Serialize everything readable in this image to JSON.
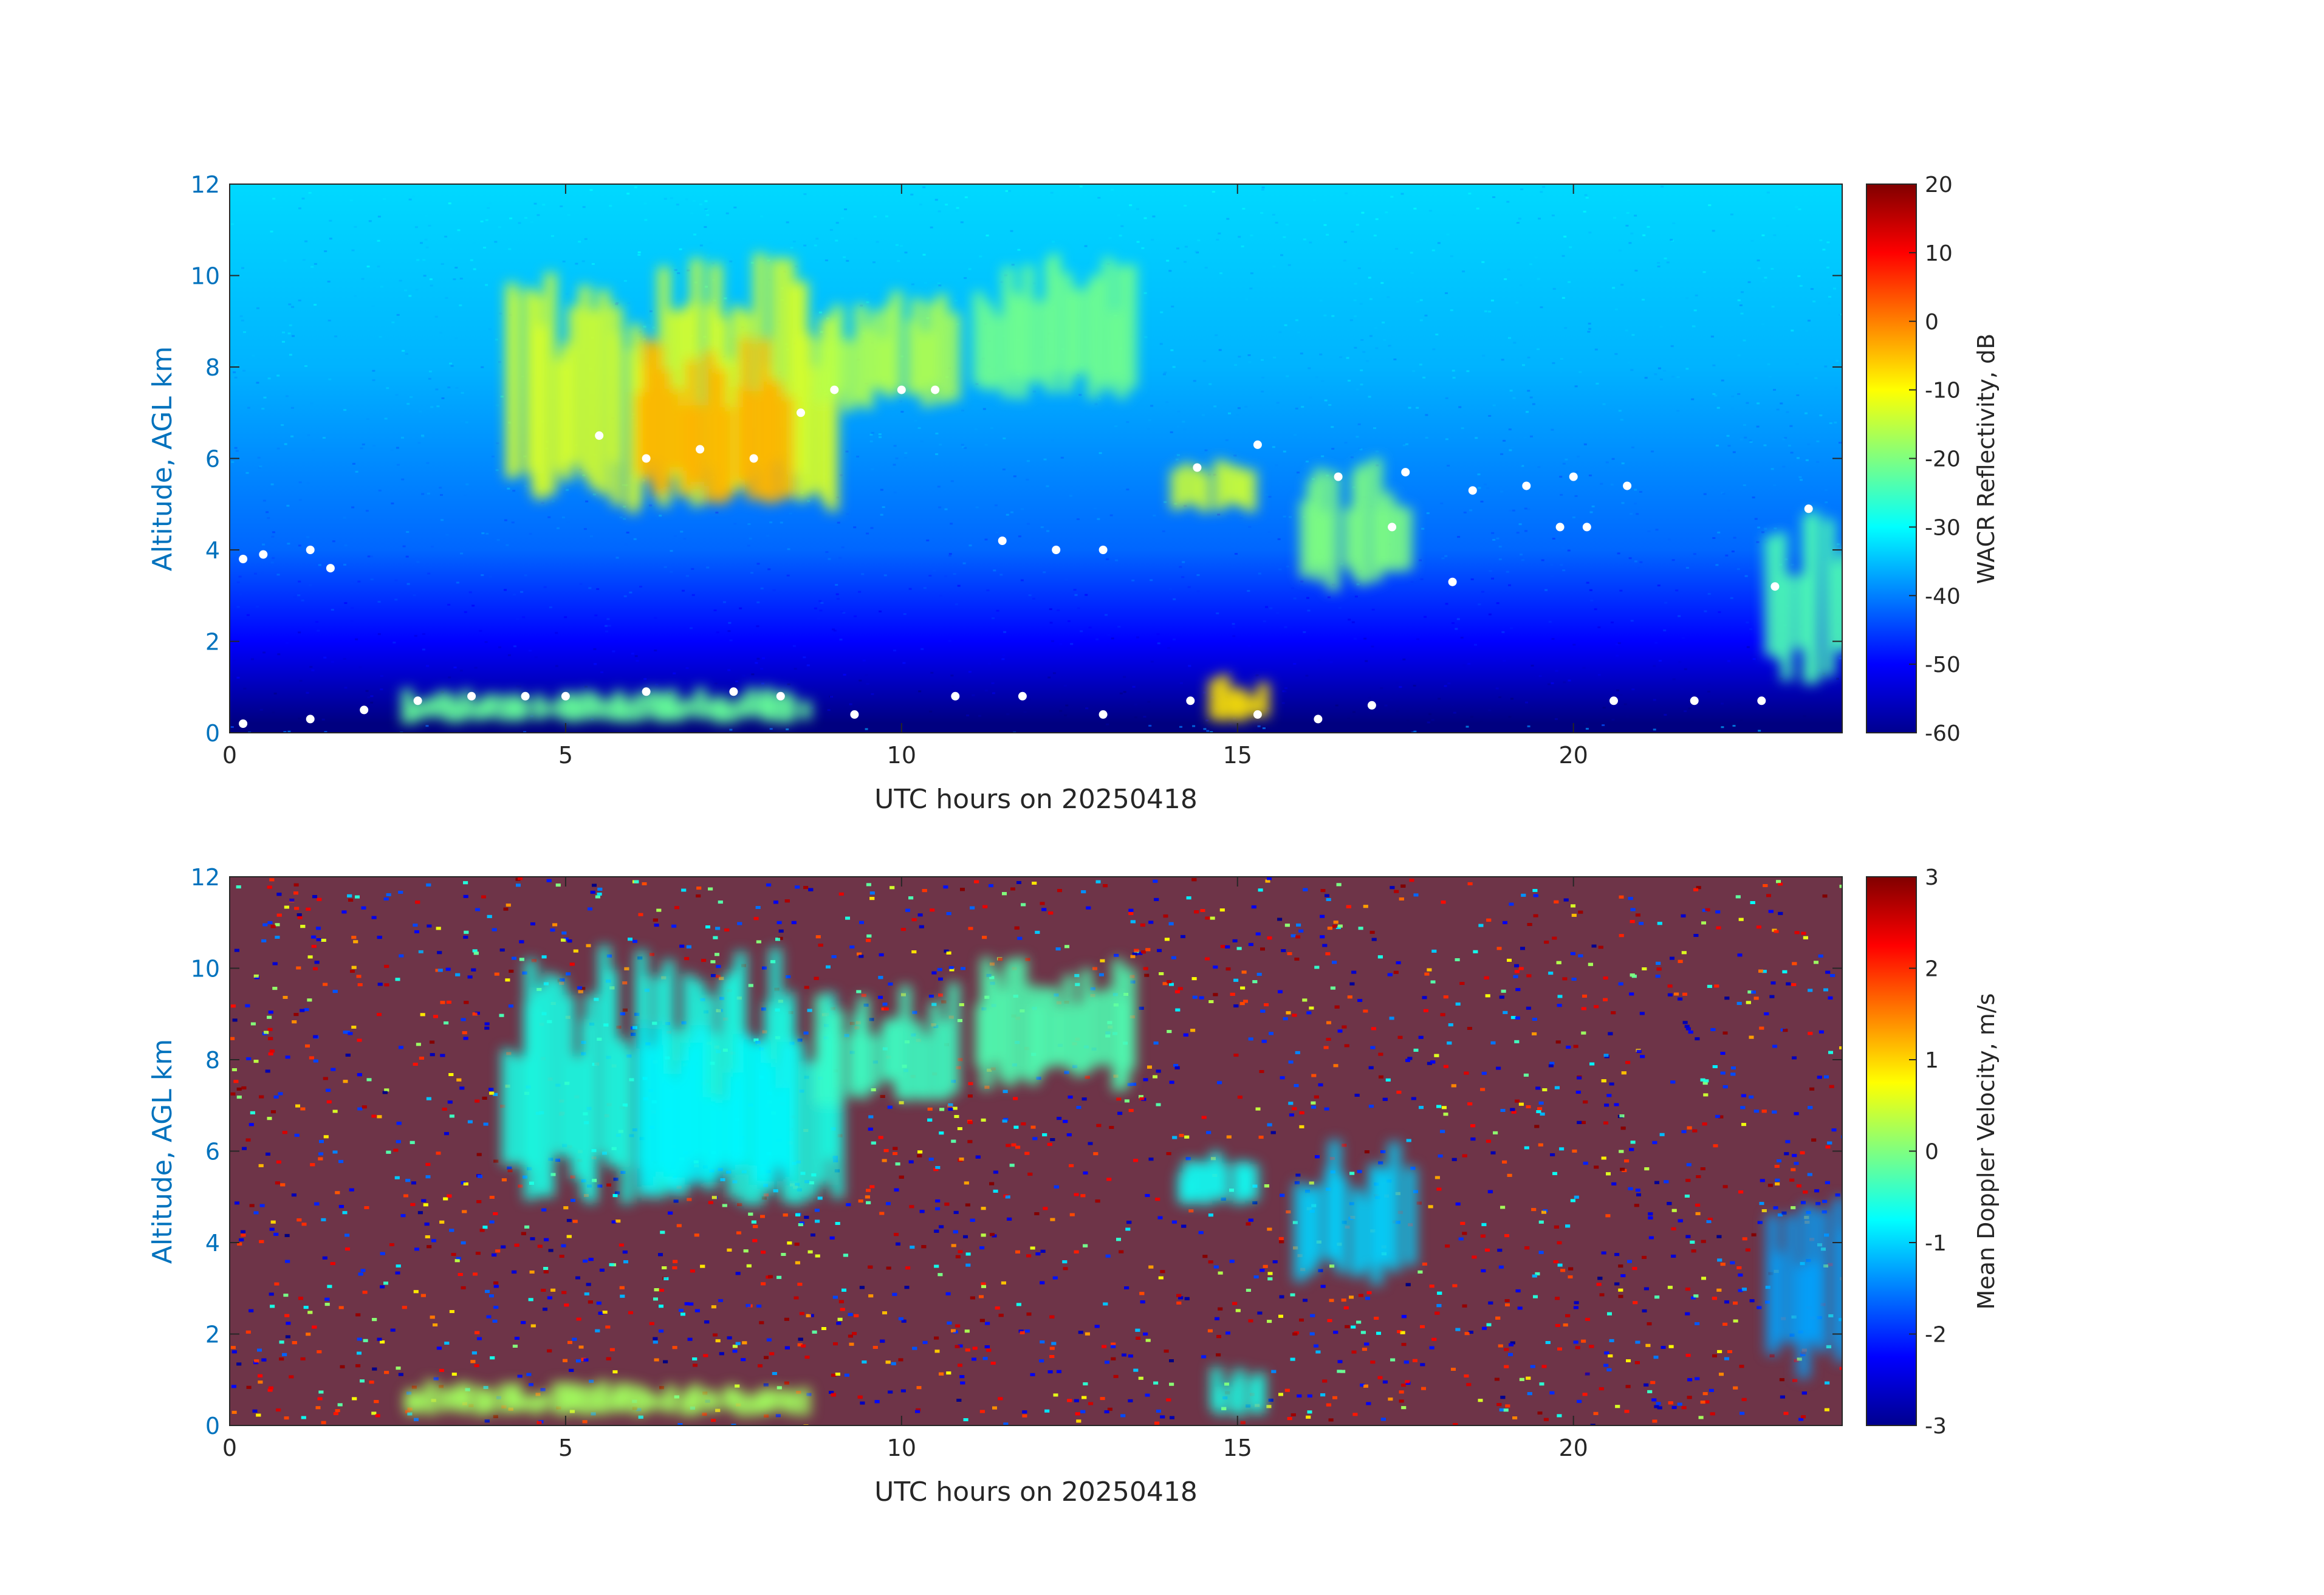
{
  "chart_data": [
    {
      "type": "heatmap",
      "title": "",
      "xlabel": "UTC hours on 20250418",
      "ylabel": "Altitude, AGL km",
      "xlim": [
        0,
        24
      ],
      "ylim": [
        0,
        12
      ],
      "xticks": [
        0,
        5,
        10,
        15,
        20
      ],
      "yticks": [
        0,
        2,
        4,
        6,
        8,
        10,
        12
      ],
      "colorbar": {
        "label": "WACR Reflectivity, dB",
        "range": [
          -60,
          20
        ],
        "ticks": [
          20,
          10,
          0,
          -10,
          -20,
          -30,
          -40,
          -50,
          -60
        ],
        "colormap": "jet"
      },
      "background_levels": [
        {
          "altitude_km": 12,
          "value": -33
        },
        {
          "altitude_km": 8,
          "value": -36
        },
        {
          "altitude_km": 4,
          "value": -42
        },
        {
          "altitude_km": 2,
          "value": -50
        },
        {
          "altitude_km": 0.2,
          "value": -60
        }
      ],
      "echoes": [
        {
          "t": [
            4.0,
            9.0
          ],
          "alt_km": [
            4.8,
            10.5
          ],
          "value": -13
        },
        {
          "t": [
            6.0,
            8.3
          ],
          "alt_km": [
            5.0,
            8.8
          ],
          "value": -4
        },
        {
          "t": [
            8.7,
            10.7
          ],
          "alt_km": [
            7.0,
            9.8
          ],
          "value": -16
        },
        {
          "t": [
            11.0,
            13.4
          ],
          "alt_km": [
            7.3,
            10.5
          ],
          "value": -21
        },
        {
          "t": [
            14.0,
            15.2
          ],
          "alt_km": [
            4.8,
            6.0
          ],
          "value": -14
        },
        {
          "t": [
            15.8,
            17.5
          ],
          "alt_km": [
            3.0,
            6.3
          ],
          "value": -20
        },
        {
          "t": [
            22.8,
            24.0
          ],
          "alt_km": [
            1.0,
            5.2
          ],
          "value": -24
        },
        {
          "t": [
            14.5,
            15.3
          ],
          "alt_km": [
            0.2,
            1.3
          ],
          "value": -8
        },
        {
          "t": [
            2.5,
            8.5
          ],
          "alt_km": [
            0.2,
            1.0
          ],
          "value": -22
        }
      ],
      "markers": [
        {
          "label": "cloud boundary points",
          "color": "#ffffff",
          "points": [
            [
              0.2,
              0.2
            ],
            [
              1.2,
              0.3
            ],
            [
              2.0,
              0.5
            ],
            [
              2.8,
              0.7
            ],
            [
              3.6,
              0.8
            ],
            [
              4.4,
              0.8
            ],
            [
              5.0,
              0.8
            ],
            [
              6.2,
              0.9
            ],
            [
              7.5,
              0.9
            ],
            [
              8.2,
              0.8
            ],
            [
              9.3,
              0.4
            ],
            [
              10.8,
              0.8
            ],
            [
              11.8,
              0.8
            ],
            [
              13.0,
              0.4
            ],
            [
              14.3,
              0.7
            ],
            [
              15.3,
              0.4
            ],
            [
              16.2,
              0.3
            ],
            [
              17.0,
              0.6
            ],
            [
              20.6,
              0.7
            ],
            [
              21.8,
              0.7
            ],
            [
              22.8,
              0.7
            ],
            [
              5.5,
              6.5
            ],
            [
              6.2,
              6.0
            ],
            [
              7.0,
              6.2
            ],
            [
              7.8,
              6.0
            ],
            [
              8.5,
              7.0
            ],
            [
              9.0,
              7.5
            ],
            [
              10.0,
              7.5
            ],
            [
              10.5,
              7.5
            ],
            [
              14.4,
              5.8
            ],
            [
              15.3,
              6.3
            ],
            [
              16.5,
              5.6
            ],
            [
              17.5,
              5.7
            ],
            [
              18.5,
              5.3
            ],
            [
              19.3,
              5.4
            ],
            [
              20.0,
              5.6
            ],
            [
              20.8,
              5.4
            ],
            [
              19.8,
              4.5
            ],
            [
              20.2,
              4.5
            ],
            [
              23.0,
              3.2
            ],
            [
              23.5,
              4.9
            ],
            [
              0.2,
              3.8
            ],
            [
              0.5,
              3.9
            ],
            [
              1.2,
              4.0
            ],
            [
              1.5,
              3.6
            ],
            [
              11.5,
              4.2
            ],
            [
              12.3,
              4.0
            ],
            [
              13.0,
              4.0
            ],
            [
              17.3,
              4.5
            ],
            [
              18.2,
              3.3
            ]
          ]
        }
      ]
    },
    {
      "type": "heatmap",
      "title": "",
      "xlabel": "UTC hours on 20250418",
      "ylabel": "Altitude, AGL km",
      "xlim": [
        0,
        24
      ],
      "ylim": [
        0,
        12
      ],
      "xticks": [
        0,
        5,
        10,
        15,
        20
      ],
      "yticks": [
        0,
        2,
        4,
        6,
        8,
        10,
        12
      ],
      "colorbar": {
        "label": "Mean Doppler Velocity, m/s",
        "range": [
          -3,
          3
        ],
        "ticks": [
          3,
          2,
          1,
          0,
          -1,
          -2,
          -3
        ],
        "colormap": "jet"
      },
      "background": "noise spanning -3 to 3 m/s",
      "echoes": [
        {
          "t": [
            4.0,
            9.0
          ],
          "alt_km": [
            4.8,
            10.5
          ],
          "value": -0.6
        },
        {
          "t": [
            6.0,
            8.3
          ],
          "alt_km": [
            5.0,
            8.8
          ],
          "value": -0.8
        },
        {
          "t": [
            8.7,
            10.7
          ],
          "alt_km": [
            7.0,
            9.8
          ],
          "value": -0.4
        },
        {
          "t": [
            11.0,
            13.4
          ],
          "alt_km": [
            7.3,
            10.5
          ],
          "value": -0.3
        },
        {
          "t": [
            14.0,
            15.2
          ],
          "alt_km": [
            4.8,
            6.0
          ],
          "value": -0.7
        },
        {
          "t": [
            15.8,
            17.5
          ],
          "alt_km": [
            3.0,
            6.3
          ],
          "value": -1.0
        },
        {
          "t": [
            22.8,
            24.0
          ],
          "alt_km": [
            1.0,
            5.2
          ],
          "value": -1.3
        },
        {
          "t": [
            14.5,
            15.3
          ],
          "alt_km": [
            0.2,
            1.3
          ],
          "value": -0.6
        },
        {
          "t": [
            2.5,
            8.5
          ],
          "alt_km": [
            0.2,
            1.0
          ],
          "value": 0.2
        }
      ]
    }
  ]
}
